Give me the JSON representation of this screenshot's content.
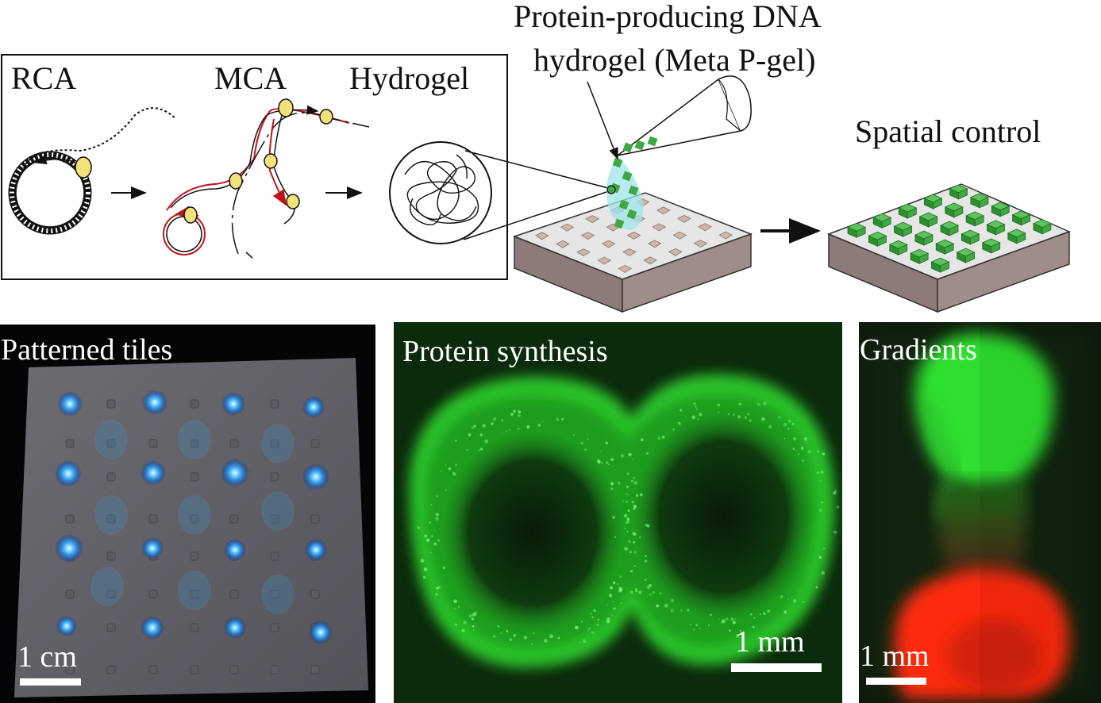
{
  "schematic": {
    "rca_label": "RCA",
    "mca_label": "MCA",
    "hydrogel_label": "Hydrogel",
    "meta_pgel_line1": "Protein-producing DNA",
    "meta_pgel_line2": "hydrogel (Meta P-gel)",
    "spatial_control_label": "Spatial control"
  },
  "photos": {
    "patterned_tiles": {
      "title": "Patterned tiles",
      "scale": "1 cm"
    },
    "protein_synthesis": {
      "title": "Protein synthesis",
      "scale": "1 mm"
    },
    "gradients": {
      "title": "Gradients",
      "scale": "1 mm"
    }
  },
  "colors": {
    "gel_green": "#3fa845",
    "fluor_green": "#28d028",
    "fluor_red": "#ff2a10",
    "fluor_blue": "#49b8ff",
    "strand_red": "#c0141c",
    "enzyme_yellow": "#f1e27a"
  }
}
